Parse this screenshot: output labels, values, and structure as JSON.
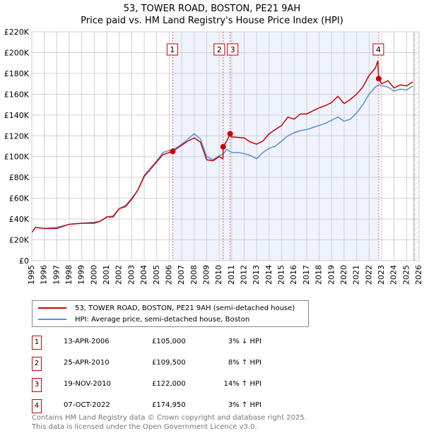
{
  "title_line1": "53, TOWER ROAD, BOSTON, PE21 9AH",
  "title_line2": "Price paid vs. HM Land Registry's House Price Index (HPI)",
  "chart_data": {
    "type": "line",
    "title": "Price paid vs. HM Land Registry's House Price Index (HPI)",
    "xlim": [
      1995,
      2026
    ],
    "ylim": [
      0,
      220000
    ],
    "x_ticks": [
      "1995",
      "1996",
      "1997",
      "1998",
      "1999",
      "2000",
      "2001",
      "2002",
      "2003",
      "2004",
      "2005",
      "2006",
      "2007",
      "2008",
      "2009",
      "2010",
      "2011",
      "2012",
      "2013",
      "2014",
      "2015",
      "2016",
      "2017",
      "2018",
      "2019",
      "2020",
      "2021",
      "2022",
      "2023",
      "2024",
      "2025",
      "2026"
    ],
    "y_ticks": [
      {
        "v": 0,
        "l": "£0"
      },
      {
        "v": 20000,
        "l": "£20K"
      },
      {
        "v": 40000,
        "l": "£40K"
      },
      {
        "v": 60000,
        "l": "£60K"
      },
      {
        "v": 80000,
        "l": "£80K"
      },
      {
        "v": 100000,
        "l": "£100K"
      },
      {
        "v": 120000,
        "l": "£120K"
      },
      {
        "v": 140000,
        "l": "£140K"
      },
      {
        "v": 160000,
        "l": "£160K"
      },
      {
        "v": 180000,
        "l": "£180K"
      },
      {
        "v": 200000,
        "l": "£200K"
      },
      {
        "v": 220000,
        "l": "£220K"
      }
    ],
    "grid": true,
    "series": [
      {
        "name": "53, TOWER ROAD, BOSTON, PE21 9AH (semi-detached house)",
        "color": "#cc0000",
        "points": [
          [
            1995,
            27
          ],
          [
            1995.3,
            32
          ],
          [
            1996,
            31
          ],
          [
            1997,
            31
          ],
          [
            1998,
            35
          ],
          [
            1999,
            36
          ],
          [
            2000,
            36
          ],
          [
            2000.5,
            38
          ],
          [
            2001,
            42
          ],
          [
            2001.5,
            42
          ],
          [
            2002,
            50
          ],
          [
            2002.5,
            52
          ],
          [
            2003,
            59
          ],
          [
            2003.5,
            68
          ],
          [
            2004,
            81
          ],
          [
            2004.5,
            88
          ],
          [
            2005,
            95
          ],
          [
            2005.5,
            102
          ],
          [
            2006,
            104
          ],
          [
            2006.28,
            105
          ],
          [
            2007,
            111
          ],
          [
            2007.5,
            115
          ],
          [
            2008,
            118
          ],
          [
            2008.5,
            114
          ],
          [
            2009,
            97
          ],
          [
            2009.5,
            96
          ],
          [
            2010,
            100
          ],
          [
            2010.3,
            98
          ],
          [
            2010.32,
            109.5
          ],
          [
            2010.6,
            115
          ],
          [
            2010.88,
            122
          ],
          [
            2011,
            119
          ],
          [
            2012,
            118
          ],
          [
            2012.5,
            114
          ],
          [
            2013,
            112
          ],
          [
            2013.5,
            115
          ],
          [
            2014,
            122
          ],
          [
            2014.5,
            126
          ],
          [
            2015,
            130
          ],
          [
            2015.5,
            138
          ],
          [
            2016,
            136
          ],
          [
            2016.5,
            141
          ],
          [
            2017,
            141
          ],
          [
            2017.5,
            144
          ],
          [
            2018,
            147
          ],
          [
            2018.5,
            149
          ],
          [
            2019,
            152
          ],
          [
            2019.5,
            158
          ],
          [
            2020,
            151
          ],
          [
            2020.5,
            155
          ],
          [
            2021,
            160
          ],
          [
            2021.5,
            167
          ],
          [
            2022,
            178
          ],
          [
            2022.5,
            185
          ],
          [
            2022.7,
            192
          ],
          [
            2022.77,
            175
          ],
          [
            2023,
            170
          ],
          [
            2023.5,
            173
          ],
          [
            2024,
            166
          ],
          [
            2024.5,
            169
          ],
          [
            2025,
            168
          ],
          [
            2025.5,
            172
          ]
        ]
      },
      {
        "name": "HPI: Average price, semi-detached house, Boston",
        "color": "#5b8fd4",
        "points": [
          [
            1995,
            27
          ],
          [
            1995.3,
            32
          ],
          [
            1996,
            31
          ],
          [
            1997,
            32
          ],
          [
            1998,
            35
          ],
          [
            1999,
            36
          ],
          [
            2000,
            37
          ],
          [
            2000.5,
            38
          ],
          [
            2001,
            42
          ],
          [
            2001.5,
            43
          ],
          [
            2002,
            50
          ],
          [
            2002.5,
            53
          ],
          [
            2003,
            60
          ],
          [
            2003.5,
            68
          ],
          [
            2004,
            82
          ],
          [
            2004.5,
            89
          ],
          [
            2005,
            96
          ],
          [
            2005.5,
            104
          ],
          [
            2006,
            106
          ],
          [
            2006.5,
            108
          ],
          [
            2007,
            112
          ],
          [
            2007.5,
            117
          ],
          [
            2008,
            122
          ],
          [
            2008.5,
            117
          ],
          [
            2009,
            100
          ],
          [
            2009.5,
            97
          ],
          [
            2010,
            101
          ],
          [
            2010.3,
            102
          ],
          [
            2010.6,
            107
          ],
          [
            2011,
            104
          ],
          [
            2011.5,
            104
          ],
          [
            2012,
            103
          ],
          [
            2012.5,
            101
          ],
          [
            2013,
            98
          ],
          [
            2013.5,
            104
          ],
          [
            2014,
            108
          ],
          [
            2014.5,
            110
          ],
          [
            2015,
            115
          ],
          [
            2015.5,
            120
          ],
          [
            2016,
            123
          ],
          [
            2016.5,
            125
          ],
          [
            2017,
            126
          ],
          [
            2017.5,
            128
          ],
          [
            2018,
            130
          ],
          [
            2018.5,
            132
          ],
          [
            2019,
            135
          ],
          [
            2019.5,
            138
          ],
          [
            2020,
            134
          ],
          [
            2020.5,
            136
          ],
          [
            2021,
            142
          ],
          [
            2021.5,
            150
          ],
          [
            2022,
            160
          ],
          [
            2022.5,
            167
          ],
          [
            2022.8,
            169
          ],
          [
            2023,
            168
          ],
          [
            2023.5,
            167
          ],
          [
            2024,
            163
          ],
          [
            2024.5,
            165
          ],
          [
            2025,
            164
          ],
          [
            2025.5,
            168
          ]
        ]
      }
    ],
    "y_point_units": "thousands GBP",
    "sales": [
      {
        "n": "1",
        "x": 2006.28,
        "y": 105
      },
      {
        "n": "2",
        "x": 2010.32,
        "y": 109.5
      },
      {
        "n": "3",
        "x": 2010.88,
        "y": 122
      },
      {
        "n": "4",
        "x": 2022.77,
        "y": 174.95
      }
    ],
    "shaded_range": [
      2006.28,
      2022.77
    ],
    "hatched_from": 2025.6,
    "legend_placement": "below"
  },
  "legend": {
    "red": "53, TOWER ROAD, BOSTON, PE21 9AH (semi-detached house)",
    "blue": "HPI: Average price, semi-detached house, Boston"
  },
  "transactions": [
    {
      "n": "1",
      "date": "13-APR-2006",
      "price": "£105,000",
      "hpi": "3% ↓ HPI"
    },
    {
      "n": "2",
      "date": "25-APR-2010",
      "price": "£109,500",
      "hpi": "8% ↑ HPI"
    },
    {
      "n": "3",
      "date": "19-NOV-2010",
      "price": "£122,000",
      "hpi": "14% ↑ HPI"
    },
    {
      "n": "4",
      "date": "07-OCT-2022",
      "price": "£174,950",
      "hpi": "3% ↑ HPI"
    }
  ],
  "footer1": "Contains HM Land Registry data © Crown copyright and database right 2025.",
  "footer2": "This data is licensed under the Open Government Licence v3.0."
}
